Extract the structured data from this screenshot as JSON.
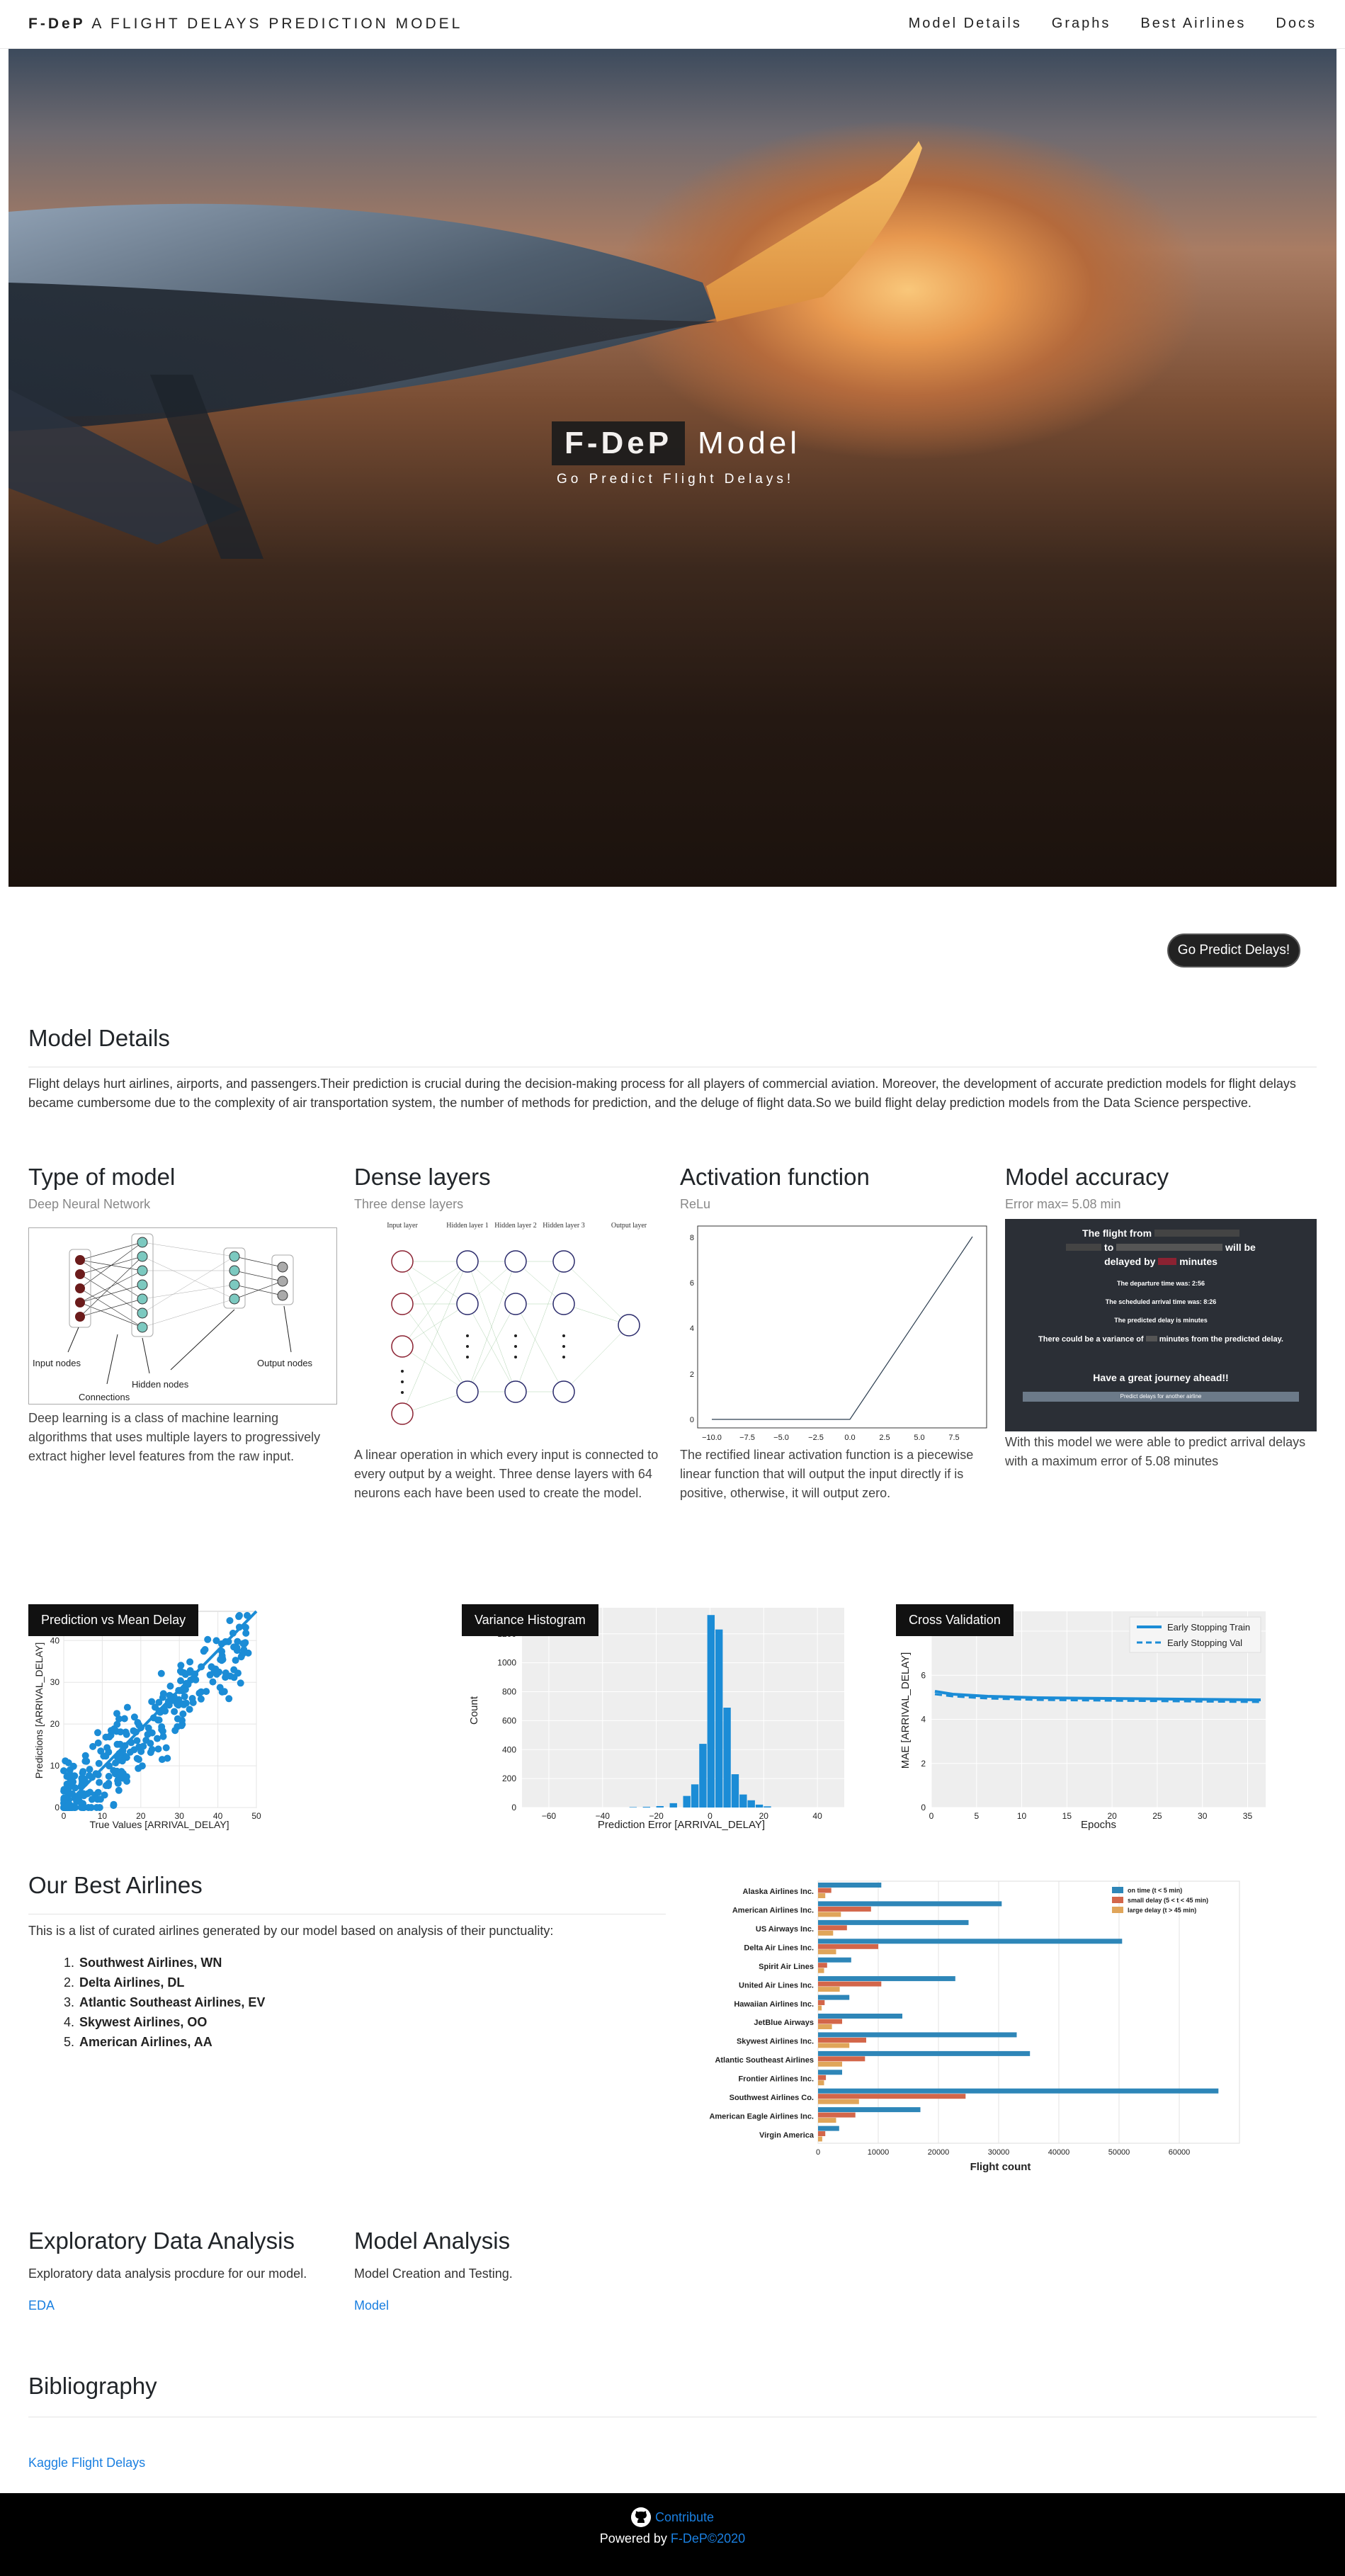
{
  "nav": {
    "brand_bold": "F-DeP",
    "brand_rest": "A FLIGHT DELAYS PREDICTION MODEL",
    "links": [
      "Model Details",
      "Graphs",
      "Best Airlines",
      "Docs"
    ]
  },
  "hero": {
    "brand": "F-DeP",
    "model": "Model",
    "subtitle": "Go Predict Flight Delays!"
  },
  "cta": "Go Predict Delays!",
  "model_details": {
    "title": "Model Details",
    "text": "Flight delays hurt airlines, airports, and passengers.Their prediction is crucial during the decision-making process for all players of commercial aviation. Moreover, the development of accurate prediction models for flight delays became cumbersome due to the complexity of air transportation system, the number of methods for prediction, and the deluge of flight data.So we build flight delay prediction models from the Data Science perspective."
  },
  "cards": [
    {
      "title": "Type of model",
      "sub": "Deep Neural Network",
      "desc": "Deep learning is a class of machine learning algorithms that uses multiple layers to progressively extract higher level features from the raw input.",
      "labels": {
        "input": "Input nodes",
        "hidden": "Hidden nodes",
        "output": "Output nodes",
        "connections": "Connections"
      }
    },
    {
      "title": "Dense layers",
      "sub": "Three dense layers",
      "desc": "A linear operation in which every input is connected to every output by a weight. Three dense layers with 64 neurons each have been used to create the model.",
      "labels": {
        "input": "Input layer",
        "h1": "Hidden layer 1",
        "h2": "Hidden layer 2",
        "h3": "Hidden layer 3",
        "output": "Output layer"
      }
    },
    {
      "title": "Activation function",
      "sub": "ReLu",
      "desc": "The rectified linear activation function is a piecewise linear function that will output the input directly if is positive, otherwise, it will output zero.",
      "xticks": [
        "−10.0",
        "−7.5",
        "−5.0",
        "−2.5",
        "0.0",
        "2.5",
        "5.0",
        "7.5"
      ],
      "yticks": [
        "0",
        "2",
        "4",
        "6",
        "8"
      ]
    },
    {
      "title": "Model accuracy",
      "sub": "Error max= 5.08 min",
      "desc": "With this model we were able to predict arrival delays with a maximum error of 5.08 minutes",
      "screen": {
        "line1": "The flight from",
        "line1b": "to",
        "line1c": "will be",
        "line2": "delayed by",
        "line2b": "minutes",
        "dep": "The departure time was: 2:56",
        "arr": "The scheduled arrival time was: 8:26",
        "pred": "The predicted delay is minutes",
        "var": "There could be a variance of",
        "var2": "minutes from the predicted delay.",
        "journey": "Have a great journey ahead!!",
        "btn": "Predict delays for another airline"
      }
    }
  ],
  "plots": {
    "p1": {
      "label": "Prediction vs Mean Delay",
      "xlabel": "True Values [ARRIVAL_DELAY]",
      "ylabel": "Predictions [ARRIVAL_DELAY]",
      "xticks": [
        "0",
        "10",
        "20",
        "30",
        "40",
        "50"
      ],
      "yticks": [
        "0",
        "10",
        "20",
        "30",
        "40"
      ]
    },
    "p2": {
      "label": "Variance Histogram",
      "xlabel": "Prediction Error [ARRIVAL_DELAY]",
      "ylabel": "Count",
      "xticks": [
        "−60",
        "−40",
        "−20",
        "0",
        "20",
        "40"
      ],
      "yticks": [
        "0",
        "200",
        "400",
        "600",
        "800",
        "1000",
        "1200"
      ]
    },
    "p3": {
      "label": "Cross Validation",
      "xlabel": "Epochs",
      "ylabel": "MAE [ARRIVAL_DELAY]",
      "xticks": [
        "0",
        "5",
        "10",
        "15",
        "20",
        "25",
        "30",
        "35"
      ],
      "yticks": [
        "0",
        "2",
        "4",
        "6",
        "8"
      ],
      "legend": [
        "Early Stopping Train",
        "Early Stopping Val"
      ]
    }
  },
  "best_airlines": {
    "title": "Our Best Airlines",
    "intro": "This is a list of curated airlines generated by our model based on analysis of their punctuality:",
    "list": [
      "Southwest Airlines, WN",
      "Delta Airlines, DL",
      "Atlantic Southeast Airlines, EV",
      "Skywest Airlines, OO",
      "American Airlines, AA"
    ]
  },
  "chart_data": {
    "type": "bar",
    "orientation": "horizontal",
    "categories": [
      "Alaska Airlines Inc.",
      "American Airlines Inc.",
      "US Airways Inc.",
      "Delta Air Lines Inc.",
      "Spirit Air Lines",
      "United Air Lines Inc.",
      "Hawaiian Airlines Inc.",
      "JetBlue Airways",
      "Skywest Airlines Inc.",
      "Atlantic Southeast Airlines",
      "Frontier Airlines Inc.",
      "Southwest Airlines Co.",
      "American Eagle Airlines Inc.",
      "Virgin America"
    ],
    "series": [
      {
        "name": "on time (t < 5 min)",
        "color": "#2e86b8",
        "values": [
          10500,
          30500,
          25000,
          50500,
          5500,
          22800,
          5200,
          14000,
          33000,
          35200,
          4000,
          66500,
          17000,
          3500
        ]
      },
      {
        "name": "small delay (5 < t < 45 min)",
        "color": "#d3664a",
        "values": [
          2200,
          8800,
          4800,
          10000,
          1500,
          10500,
          1100,
          4000,
          8000,
          7800,
          1300,
          24500,
          6200,
          1200
        ]
      },
      {
        "name": "large delay (t > 45 min)",
        "color": "#e0a55a",
        "values": [
          1200,
          3800,
          2500,
          3000,
          1000,
          3600,
          600,
          2300,
          5200,
          4000,
          1000,
          6800,
          3000,
          700
        ]
      }
    ],
    "xlabel": "Flight count",
    "xticks": [
      "0",
      "10000",
      "20000",
      "30000",
      "40000",
      "50000",
      "60000"
    ],
    "xlim": [
      0,
      70000
    ],
    "grid": true,
    "legend_position": "top-right"
  },
  "eda": {
    "title": "Exploratory Data Analysis",
    "text": "Exploratory data analysis procdure for our model.",
    "link": "EDA"
  },
  "model_analysis": {
    "title": "Model Analysis",
    "text": "Model Creation and Testing.",
    "link": "Model"
  },
  "bibliography": {
    "title": "Bibliography",
    "link": "Kaggle Flight Delays"
  },
  "footer": {
    "contribute": "Contribute",
    "powered": "Powered by",
    "brand": "F-DeP©2020"
  }
}
